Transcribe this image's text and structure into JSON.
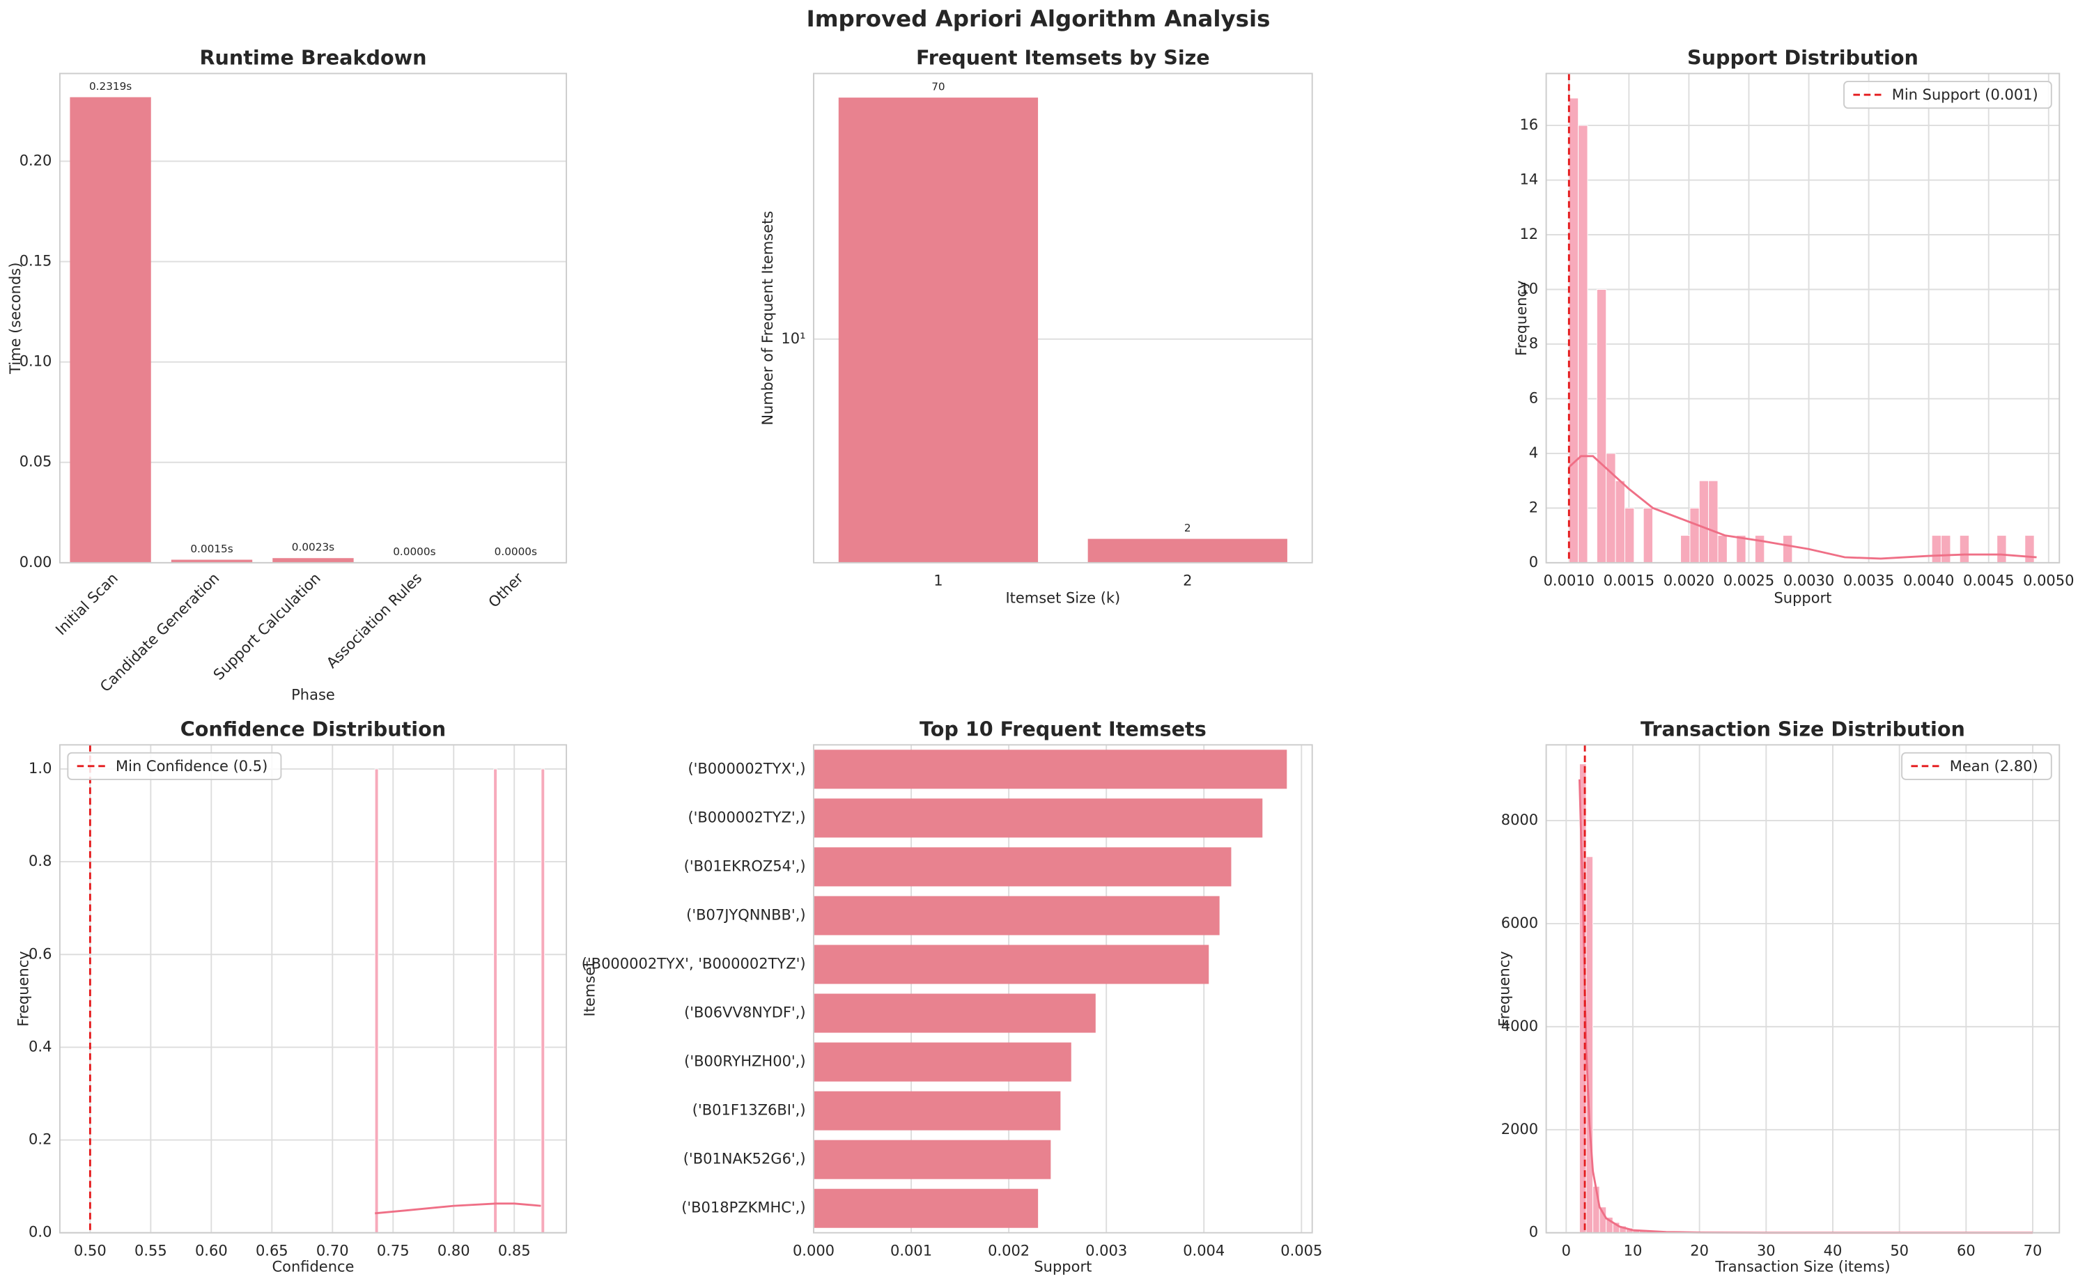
{
  "title": "Improved Apriori Algorithm Analysis",
  "chart_data": [
    {
      "type": "bar",
      "title": "Runtime Breakdown",
      "xlabel": "Phase",
      "ylabel": "Time (seconds)",
      "categories": [
        "Initial Scan",
        "Candidate Generation",
        "Support Calculation",
        "Association Rules",
        "Other"
      ],
      "values": [
        0.2319,
        0.0015,
        0.0023,
        0.0,
        0.0
      ],
      "value_labels": [
        "0.2319s",
        "0.0015s",
        "0.0023s",
        "0.0000s",
        "0.0000s"
      ],
      "data_labels": true,
      "color": "#e8828f",
      "xtick_rotation": 45,
      "grid": "y",
      "ylim": [
        0,
        0.2437
      ],
      "yticks": [
        {
          "value": 0,
          "label": "0.00"
        },
        0.05,
        {
          "value": 0.1,
          "label": "0.10"
        },
        0.15,
        {
          "value": 0.2,
          "label": "0.20"
        }
      ]
    },
    {
      "type": "bar",
      "title": "Frequent Itemsets by Size",
      "xlabel": "Itemset Size (k)",
      "ylabel": "Number of Frequent Itemsets",
      "categories": [
        "1",
        "2"
      ],
      "values": [
        70,
        2
      ],
      "data_labels": true,
      "color": "#e8828f",
      "grid": "y",
      "yscale": "log",
      "ylim": [
        1.65,
        85
      ],
      "yticks": [
        {
          "value": 10,
          "label": "10¹"
        }
      ]
    },
    {
      "type": "histogram",
      "title": "Support Distribution",
      "xlabel": "Support",
      "ylabel": "Frequency",
      "color": "#f7aabb",
      "grid": "both",
      "legend": "upper right",
      "bins": [
        0.001,
        0.0010776,
        0.0011552,
        0.0012328,
        0.0013104,
        0.001388,
        0.0014656,
        0.0015432,
        0.0016208,
        0.0016984,
        0.001776,
        0.0018536,
        0.0019312,
        0.0020088,
        0.0020864,
        0.002164,
        0.0022416,
        0.0023192,
        0.0023968,
        0.0024744,
        0.002552,
        0.0026296,
        0.0027072,
        0.0027848,
        0.0028624,
        0.00294,
        0.0030176,
        0.0030952,
        0.0031728,
        0.0032504,
        0.003328,
        0.0034056,
        0.0034832,
        0.0035608,
        0.0036384,
        0.003716,
        0.0037936,
        0.0038712,
        0.0039488,
        0.0040264,
        0.004104,
        0.0041816,
        0.0042592,
        0.0043368,
        0.0044144,
        0.004492,
        0.0045696,
        0.0046472,
        0.0047248,
        0.0048024,
        0.00488
      ],
      "counts": [
        17,
        16,
        0,
        10,
        4,
        3,
        2,
        0,
        2,
        0,
        0,
        0,
        1,
        2,
        3,
        3,
        1,
        0,
        1,
        0,
        1,
        0,
        0,
        1,
        0,
        0,
        0,
        0,
        0,
        0,
        0,
        0,
        0,
        0,
        0,
        0,
        0,
        0,
        0,
        1,
        1,
        0,
        1,
        0,
        0,
        0,
        1,
        0,
        0,
        1
      ],
      "kde": {
        "color": "#ef6f86",
        "x": [
          0.001,
          0.0011,
          0.0012,
          0.0013,
          0.0015,
          0.0017,
          0.002,
          0.0023,
          0.0026,
          0.003,
          0.0033,
          0.0036,
          0.004,
          0.0043,
          0.0046,
          0.0049
        ],
        "values": [
          3.5,
          3.9,
          3.9,
          3.5,
          2.7,
          2.0,
          1.5,
          1.0,
          0.8,
          0.5,
          0.2,
          0.15,
          0.25,
          0.3,
          0.3,
          0.2
        ]
      },
      "vline": {
        "value": 0.001,
        "label": "Min Support (0.001)",
        "color": "#e41a1c"
      },
      "xlim": [
        0.00081,
        0.00509
      ],
      "xticks": [
        {
          "value": 0.001,
          "label": "0.0010"
        },
        0.0015,
        {
          "value": 0.002,
          "label": "0.0020"
        },
        0.0025,
        {
          "value": 0.003,
          "label": "0.0030"
        },
        0.0035,
        {
          "value": 0.004,
          "label": "0.0040"
        },
        0.0045,
        {
          "value": 0.005,
          "label": "0.0050"
        }
      ],
      "ylim": [
        0,
        17.9
      ],
      "yticks": [
        0,
        2,
        4,
        6,
        8,
        10,
        12,
        14,
        16
      ]
    },
    {
      "type": "histogram",
      "title": "Confidence Distribution",
      "xlabel": "Confidence",
      "ylabel": "Frequency",
      "color": "#f7aabb",
      "grid": "both",
      "legend": "upper left",
      "bins": [
        0.735,
        0.7378,
        0.7406,
        0.7434,
        0.7462,
        0.749,
        0.7518,
        0.7546,
        0.7574,
        0.7602,
        0.763,
        0.7658,
        0.7686,
        0.7714,
        0.7742,
        0.777,
        0.7798,
        0.7826,
        0.7854,
        0.7882,
        0.791,
        0.7938,
        0.7966,
        0.7994,
        0.8022,
        0.805,
        0.8078,
        0.8106,
        0.8134,
        0.8162,
        0.819,
        0.8218,
        0.8246,
        0.8274,
        0.8302,
        0.833,
        0.8358,
        0.8386,
        0.8414,
        0.8442,
        0.847,
        0.8498,
        0.8526,
        0.8554,
        0.8582,
        0.861,
        0.8638,
        0.8666,
        0.8694,
        0.8722,
        0.875
      ],
      "counts": [
        1,
        0,
        0,
        0,
        0,
        0,
        0,
        0,
        0,
        0,
        0,
        0,
        0,
        0,
        0,
        0,
        0,
        0,
        0,
        0,
        0,
        0,
        0,
        0,
        0,
        0,
        0,
        0,
        0,
        0,
        0,
        0,
        0,
        0,
        0,
        1,
        0,
        0,
        0,
        0,
        0,
        0,
        0,
        0,
        0,
        0,
        0,
        0,
        0,
        1
      ],
      "kde": {
        "color": "#ef6f86",
        "x": [
          0.735,
          0.76,
          0.8,
          0.835,
          0.85,
          0.872
        ],
        "values": [
          0.042,
          0.048,
          0.058,
          0.063,
          0.063,
          0.058
        ]
      },
      "vline": {
        "value": 0.5,
        "label": "Min Confidence (0.5)",
        "color": "#e41a1c"
      },
      "xlim": [
        0.475,
        0.893
      ],
      "xticks": [
        {
          "value": 0.5,
          "label": "0.50"
        },
        0.55,
        {
          "value": 0.6,
          "label": "0.60"
        },
        0.65,
        {
          "value": 0.7,
          "label": "0.70"
        },
        0.75,
        {
          "value": 0.8,
          "label": "0.80"
        },
        0.85
      ],
      "ylim": [
        0,
        1.052
      ],
      "yticks": [
        {
          "value": 0,
          "label": "0.0"
        },
        0.2,
        0.4,
        0.6,
        0.8,
        {
          "value": 1,
          "label": "1.0"
        }
      ]
    },
    {
      "type": "barh",
      "title": "Top 10 Frequent Itemsets",
      "xlabel": "Support",
      "ylabel": "Itemset",
      "categories": [
        "('B000002TYX',)",
        "('B000002TYZ',)",
        "('B01EKROZ54',)",
        "('B07JYQNNBB',)",
        "('B000002TYX', 'B000002TYZ')",
        "('B06VV8NYDF',)",
        "('B00RYHZH00',)",
        "('B01F13Z6BI',)",
        "('B01NAK52G6',)",
        "('B018PZKMHC',)"
      ],
      "values": [
        0.00485,
        0.0046,
        0.00428,
        0.00416,
        0.00405,
        0.00289,
        0.00264,
        0.00253,
        0.00243,
        0.0023
      ],
      "color": "#e8828f",
      "grid": "x",
      "xlim": [
        0,
        0.00511
      ],
      "xticks": [
        {
          "value": 0,
          "label": "0.000"
        },
        0.001,
        0.002,
        0.003,
        0.004,
        0.005
      ]
    },
    {
      "type": "histogram",
      "title": "Transaction Size Distribution",
      "xlabel": "Transaction Size (items)",
      "ylabel": "Frequency",
      "color": "#f7aabb",
      "grid": "both",
      "legend": "upper right",
      "bins": [
        2,
        3,
        4,
        5,
        6,
        7,
        8,
        9,
        10,
        11,
        12,
        13,
        14,
        15,
        16,
        17,
        18,
        19,
        20,
        21,
        22,
        23,
        24,
        25,
        26,
        27,
        28,
        29,
        30,
        31,
        32,
        33,
        34,
        35,
        36,
        37,
        38,
        39,
        40,
        41,
        42,
        43,
        44,
        45,
        46,
        47,
        48,
        49,
        50,
        51,
        52,
        53,
        54,
        55,
        56,
        57,
        58,
        59,
        60,
        61,
        62,
        63,
        64,
        65,
        66,
        67,
        68,
        69,
        70,
        71
      ],
      "counts": [
        9100,
        7300,
        900,
        500,
        300,
        200,
        130,
        90,
        60,
        40,
        30,
        20,
        15,
        10,
        8,
        6,
        5,
        4,
        3,
        2,
        2,
        1,
        1,
        1,
        1,
        1,
        0,
        1,
        1,
        0,
        1,
        0,
        1,
        0,
        0,
        1,
        0,
        0,
        1,
        0,
        0,
        1,
        0,
        0,
        0,
        1,
        0,
        0,
        0,
        0,
        1,
        0,
        0,
        0,
        0,
        0,
        0,
        1,
        0,
        0,
        0,
        0,
        0,
        0,
        0,
        0,
        0,
        0,
        1
      ],
      "kde": {
        "color": "#ef6f86",
        "x": [
          2,
          2.5,
          3,
          3.5,
          4,
          5,
          6,
          8,
          10,
          15,
          20,
          30,
          50,
          70
        ],
        "values": [
          8800,
          6500,
          3600,
          2100,
          1200,
          500,
          280,
          120,
          50,
          15,
          5,
          1,
          0,
          0
        ]
      },
      "vline": {
        "value": 2.8,
        "label": "Mean (2.80)",
        "color": "#e41a1c"
      },
      "xlim": [
        -3,
        74
      ],
      "xticks": [
        0,
        10,
        20,
        30,
        40,
        50,
        60,
        70
      ],
      "ylim": [
        0,
        9470
      ],
      "yticks": [
        0,
        2000,
        4000,
        6000,
        8000
      ]
    }
  ]
}
